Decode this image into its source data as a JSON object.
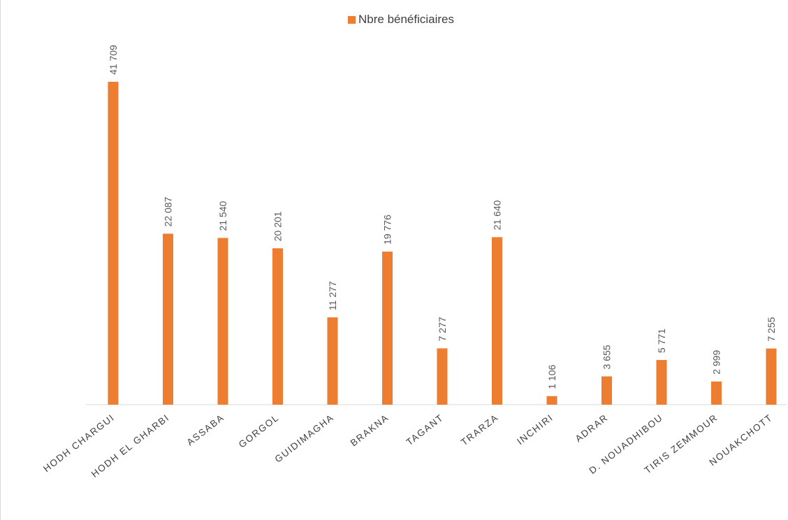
{
  "chart_data": {
    "type": "bar",
    "categories": [
      "HODH CHARGUI",
      "HODH EL GHARBI",
      "ASSABA",
      "GORGOL",
      "GUIDIMAGHA",
      "BRAKNA",
      "TAGANT",
      "TRARZA",
      "INCHIRI",
      "ADRAR",
      "D. NOUADHIBOU",
      "TIRIS ZEMMOUR",
      "NOUAKCHOTT"
    ],
    "series": [
      {
        "name": "Nbre bénéficiaires",
        "values": [
          41709,
          22087,
          21540,
          20201,
          11277,
          19776,
          7277,
          21640,
          1106,
          3655,
          5771,
          2999,
          7255
        ],
        "data_labels": [
          "41 709",
          "22 087",
          "21 540",
          "20 201",
          "11 277",
          "19 776",
          "7 277",
          "21 640",
          "1 106",
          "3 655",
          "5 771",
          "2 999",
          "7 255"
        ]
      }
    ],
    "colors": {
      "bar": "#ED7D31",
      "axis": "#d9d9d9"
    },
    "ylim": [
      0,
      45000
    ],
    "grid": false,
    "legend_position": "top-center"
  }
}
